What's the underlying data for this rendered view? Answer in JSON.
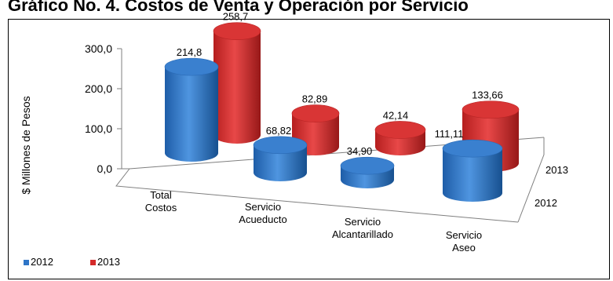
{
  "chart_data": {
    "type": "bar",
    "title": "Gráfico No. 4. Costos de Venta y Operación por Servicio",
    "ylabel": "$ Millones de Pesos",
    "ylim": [
      0,
      300
    ],
    "y_ticks": [
      "0,0",
      "100,0",
      "200,0",
      "300,0"
    ],
    "categories": [
      "Total Costos",
      "Servicio Acueducto",
      "Servicio Alcantarillado",
      "Servicio Aseo"
    ],
    "series": [
      {
        "name": "2012",
        "color": "#2E75C7",
        "values": [
          214.8,
          68.82,
          34.9,
          111.11
        ],
        "labels": [
          "214,8",
          "68,82",
          "34,90",
          "111,11"
        ]
      },
      {
        "name": "2013",
        "color": "#D42A2A",
        "values": [
          258.7,
          82.89,
          42.14,
          133.66
        ],
        "labels": [
          "258,7",
          "82,89",
          "42,14",
          "133,66"
        ]
      }
    ],
    "depth_labels": [
      "2013",
      "2012"
    ],
    "legend": {
      "position": "bottom-left",
      "items": [
        "2012",
        "2013"
      ]
    },
    "grid": false,
    "style": "3d-cylinder"
  }
}
